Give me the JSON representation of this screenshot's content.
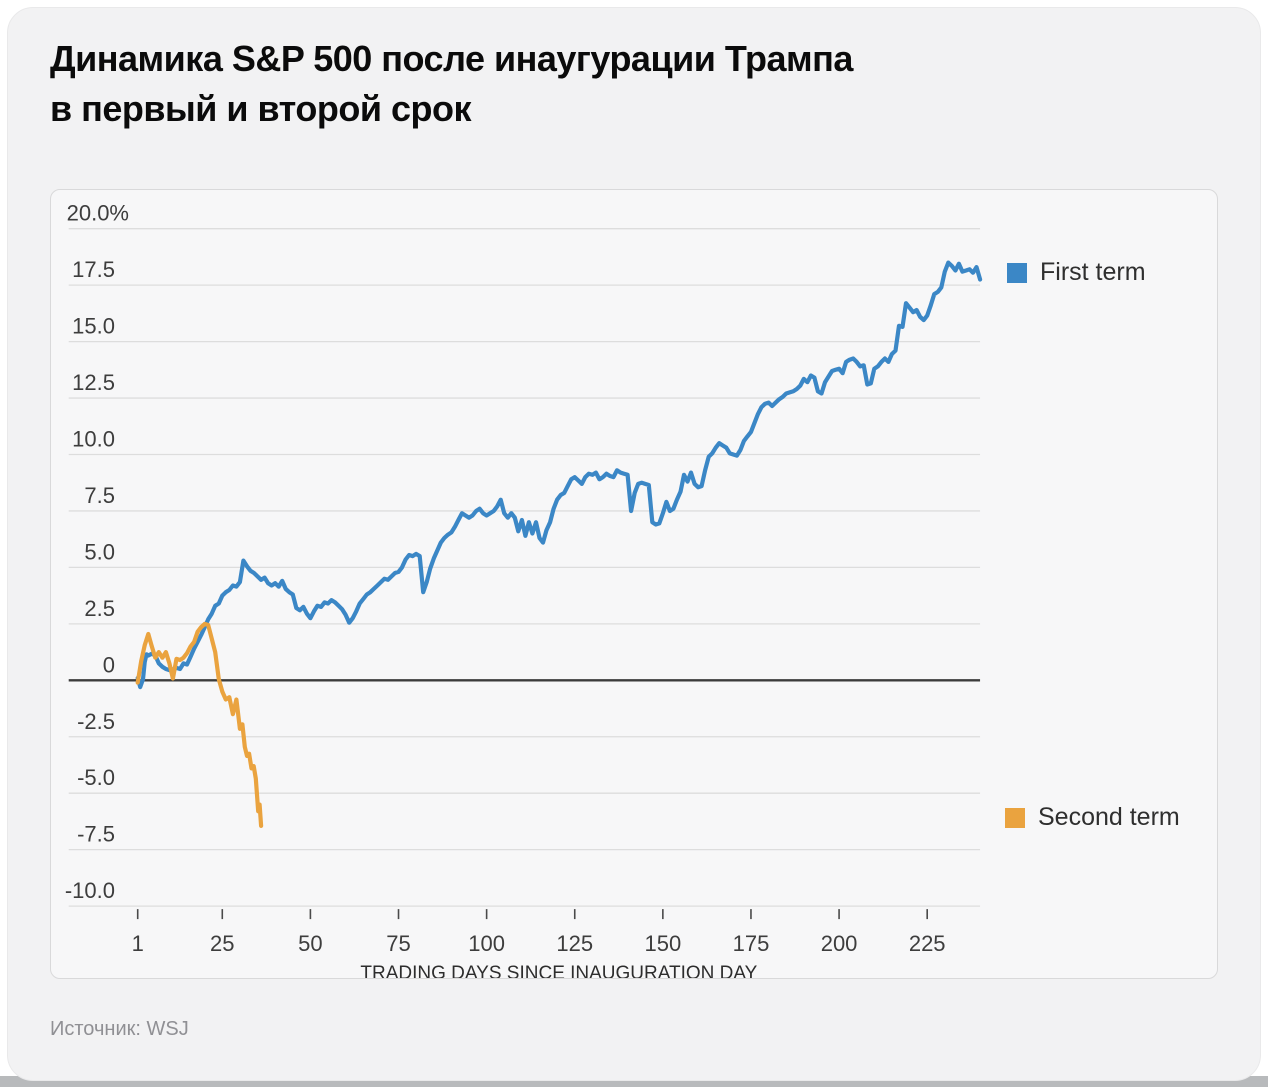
{
  "title": "Динамика S&P 500 после инаугурации Трампа\nв первый и второй срок",
  "source_note": "Источник: WSJ",
  "colors": {
    "first_term": "#3b87c6",
    "second_term": "#eaa33f",
    "grid": "#dddddd",
    "zero_line": "#3c3c3c",
    "tick_text": "#3d3d3d",
    "axis_title_text": "#2d2d2d",
    "card_bg": "#f2f2f3",
    "panel_bg": "#f7f7f8"
  },
  "chart_data": {
    "type": "line",
    "title": "Динамика S&P 500 после инаугурации Трампа в первый и второй срок",
    "xlabel": "TRADING DAYS SINCE INAUGURATION DAY",
    "ylabel": "",
    "grid": true,
    "legend_position": "right",
    "xlim": [
      1,
      240
    ],
    "ylim": [
      -10,
      20
    ],
    "x_ticks": [
      1,
      25,
      50,
      75,
      100,
      125,
      150,
      175,
      200,
      225
    ],
    "y_ticks": [
      {
        "value": 20,
        "label": "20.0%"
      },
      {
        "value": 17.5,
        "label": "17.5"
      },
      {
        "value": 15,
        "label": "15.0"
      },
      {
        "value": 12.5,
        "label": "12.5"
      },
      {
        "value": 10,
        "label": "10.0"
      },
      {
        "value": 7.5,
        "label": "7.5"
      },
      {
        "value": 5,
        "label": "5.0"
      },
      {
        "value": 2.5,
        "label": "2.5"
      },
      {
        "value": 0,
        "label": "0"
      },
      {
        "value": -2.5,
        "label": "-2.5"
      },
      {
        "value": -5,
        "label": "-5.0"
      },
      {
        "value": -7.5,
        "label": "-7.5"
      },
      {
        "value": -10,
        "label": "-10.0"
      }
    ],
    "series": [
      {
        "name": "First term",
        "color": "#3b87c6",
        "points": [
          [
            1,
            0.1
          ],
          [
            1.7,
            -0.3
          ],
          [
            2.5,
            0.05
          ],
          [
            3,
            0.8
          ],
          [
            3.5,
            1.15
          ],
          [
            4,
            1.1
          ],
          [
            5,
            1.18
          ],
          [
            6,
            1.1
          ],
          [
            7,
            0.75
          ],
          [
            8,
            0.6
          ],
          [
            9,
            0.5
          ],
          [
            10,
            0.45
          ],
          [
            11,
            0.48
          ],
          [
            12,
            0.55
          ],
          [
            13,
            0.5
          ],
          [
            14,
            0.75
          ],
          [
            15,
            0.7
          ],
          [
            16,
            1.05
          ],
          [
            17,
            1.4
          ],
          [
            18,
            1.7
          ],
          [
            19,
            2.0
          ],
          [
            20,
            2.35
          ],
          [
            21,
            2.7
          ],
          [
            22,
            2.95
          ],
          [
            23,
            3.3
          ],
          [
            24,
            3.4
          ],
          [
            25,
            3.75
          ],
          [
            26,
            3.9
          ],
          [
            27,
            4.0
          ],
          [
            28,
            4.2
          ],
          [
            29,
            4.15
          ],
          [
            30,
            4.35
          ],
          [
            31,
            5.3
          ],
          [
            32,
            5.05
          ],
          [
            33,
            4.85
          ],
          [
            34,
            4.75
          ],
          [
            35,
            4.6
          ],
          [
            36,
            4.45
          ],
          [
            37,
            4.55
          ],
          [
            38,
            4.3
          ],
          [
            39,
            4.2
          ],
          [
            40,
            4.3
          ],
          [
            41,
            4.15
          ],
          [
            42,
            4.4
          ],
          [
            43,
            4.05
          ],
          [
            44,
            3.9
          ],
          [
            45,
            3.8
          ],
          [
            46,
            3.2
          ],
          [
            47,
            3.1
          ],
          [
            48,
            3.25
          ],
          [
            49,
            2.95
          ],
          [
            50,
            2.75
          ],
          [
            51,
            3.05
          ],
          [
            52,
            3.3
          ],
          [
            53,
            3.25
          ],
          [
            54,
            3.45
          ],
          [
            55,
            3.4
          ],
          [
            56,
            3.55
          ],
          [
            57,
            3.45
          ],
          [
            58,
            3.3
          ],
          [
            59,
            3.15
          ],
          [
            60,
            2.9
          ],
          [
            61,
            2.55
          ],
          [
            62,
            2.75
          ],
          [
            63,
            3.05
          ],
          [
            64,
            3.4
          ],
          [
            65,
            3.6
          ],
          [
            66,
            3.8
          ],
          [
            67,
            3.9
          ],
          [
            68,
            4.05
          ],
          [
            69,
            4.2
          ],
          [
            70,
            4.35
          ],
          [
            71,
            4.5
          ],
          [
            72,
            4.45
          ],
          [
            73,
            4.6
          ],
          [
            74,
            4.75
          ],
          [
            75,
            4.8
          ],
          [
            76,
            5.0
          ],
          [
            77,
            5.35
          ],
          [
            78,
            5.55
          ],
          [
            79,
            5.5
          ],
          [
            80,
            5.6
          ],
          [
            81,
            5.5
          ],
          [
            82,
            3.9
          ],
          [
            83,
            4.35
          ],
          [
            84,
            4.95
          ],
          [
            85,
            5.4
          ],
          [
            86,
            5.75
          ],
          [
            87,
            6.1
          ],
          [
            88,
            6.3
          ],
          [
            89,
            6.45
          ],
          [
            90,
            6.55
          ],
          [
            91,
            6.8
          ],
          [
            92,
            7.1
          ],
          [
            93,
            7.4
          ],
          [
            94,
            7.3
          ],
          [
            95,
            7.2
          ],
          [
            96,
            7.3
          ],
          [
            97,
            7.5
          ],
          [
            98,
            7.6
          ],
          [
            99,
            7.4
          ],
          [
            100,
            7.3
          ],
          [
            101,
            7.4
          ],
          [
            102,
            7.5
          ],
          [
            103,
            7.7
          ],
          [
            104,
            8.0
          ],
          [
            105,
            7.4
          ],
          [
            106,
            7.2
          ],
          [
            107,
            7.4
          ],
          [
            108,
            7.2
          ],
          [
            109,
            6.6
          ],
          [
            110,
            7.1
          ],
          [
            111,
            6.4
          ],
          [
            112,
            7.0
          ],
          [
            113,
            6.5
          ],
          [
            114,
            7.0
          ],
          [
            115,
            6.3
          ],
          [
            116,
            6.1
          ],
          [
            117,
            6.65
          ],
          [
            118,
            7.0
          ],
          [
            119,
            7.6
          ],
          [
            120,
            8.0
          ],
          [
            121,
            8.2
          ],
          [
            122,
            8.3
          ],
          [
            123,
            8.6
          ],
          [
            124,
            8.9
          ],
          [
            125,
            9.0
          ],
          [
            126,
            8.85
          ],
          [
            127,
            8.7
          ],
          [
            128,
            9.0
          ],
          [
            129,
            9.15
          ],
          [
            130,
            9.1
          ],
          [
            131,
            9.2
          ],
          [
            132,
            8.9
          ],
          [
            133,
            9.0
          ],
          [
            134,
            9.15
          ],
          [
            135,
            9.05
          ],
          [
            136,
            9.0
          ],
          [
            137,
            9.3
          ],
          [
            138,
            9.2
          ],
          [
            139,
            9.15
          ],
          [
            140,
            9.1
          ],
          [
            141,
            7.5
          ],
          [
            142,
            8.3
          ],
          [
            143,
            8.7
          ],
          [
            144,
            8.75
          ],
          [
            145,
            8.7
          ],
          [
            146,
            8.65
          ],
          [
            147,
            7.0
          ],
          [
            148,
            6.9
          ],
          [
            149,
            6.95
          ],
          [
            150,
            7.4
          ],
          [
            151,
            7.9
          ],
          [
            152,
            7.5
          ],
          [
            153,
            7.6
          ],
          [
            154,
            8.0
          ],
          [
            155,
            8.35
          ],
          [
            156,
            9.1
          ],
          [
            157,
            8.8
          ],
          [
            158,
            9.2
          ],
          [
            159,
            8.7
          ],
          [
            160,
            8.55
          ],
          [
            161,
            8.6
          ],
          [
            162,
            9.3
          ],
          [
            163,
            9.9
          ],
          [
            164,
            10.05
          ],
          [
            165,
            10.3
          ],
          [
            166,
            10.5
          ],
          [
            167,
            10.4
          ],
          [
            168,
            10.3
          ],
          [
            169,
            10.05
          ],
          [
            170,
            10.0
          ],
          [
            171,
            9.95
          ],
          [
            172,
            10.2
          ],
          [
            173,
            10.6
          ],
          [
            174,
            10.8
          ],
          [
            175,
            11.0
          ],
          [
            176,
            11.4
          ],
          [
            177,
            11.8
          ],
          [
            178,
            12.1
          ],
          [
            179,
            12.25
          ],
          [
            180,
            12.3
          ],
          [
            181,
            12.15
          ],
          [
            182,
            12.3
          ],
          [
            183,
            12.45
          ],
          [
            184,
            12.55
          ],
          [
            185,
            12.7
          ],
          [
            186,
            12.75
          ],
          [
            187,
            12.8
          ],
          [
            188,
            12.9
          ],
          [
            189,
            13.05
          ],
          [
            190,
            13.35
          ],
          [
            191,
            13.2
          ],
          [
            192,
            13.5
          ],
          [
            193,
            13.4
          ],
          [
            194,
            12.8
          ],
          [
            195,
            12.7
          ],
          [
            196,
            13.2
          ],
          [
            197,
            13.45
          ],
          [
            198,
            13.7
          ],
          [
            199,
            13.75
          ],
          [
            200,
            13.8
          ],
          [
            201,
            13.6
          ],
          [
            202,
            14.1
          ],
          [
            203,
            14.2
          ],
          [
            204,
            14.25
          ],
          [
            205,
            14.1
          ],
          [
            206,
            13.9
          ],
          [
            207,
            13.95
          ],
          [
            208,
            13.1
          ],
          [
            209,
            13.15
          ],
          [
            210,
            13.8
          ],
          [
            211,
            13.9
          ],
          [
            212,
            14.1
          ],
          [
            213,
            14.25
          ],
          [
            214,
            14.1
          ],
          [
            215,
            14.45
          ],
          [
            216,
            14.6
          ],
          [
            217,
            15.7
          ],
          [
            218,
            15.65
          ],
          [
            219,
            16.7
          ],
          [
            220,
            16.5
          ],
          [
            221,
            16.3
          ],
          [
            222,
            16.4
          ],
          [
            223,
            16.1
          ],
          [
            224,
            15.95
          ],
          [
            225,
            16.15
          ],
          [
            226,
            16.6
          ],
          [
            227,
            17.1
          ],
          [
            228,
            17.2
          ],
          [
            229,
            17.4
          ],
          [
            230,
            18.1
          ],
          [
            231,
            18.5
          ],
          [
            232,
            18.35
          ],
          [
            233,
            18.15
          ],
          [
            234,
            18.45
          ],
          [
            235,
            18.1
          ],
          [
            236,
            18.15
          ],
          [
            237,
            18.2
          ],
          [
            238,
            18.05
          ],
          [
            239,
            18.3
          ],
          [
            240,
            17.75
          ]
        ]
      },
      {
        "name": "Second term",
        "color": "#eaa33f",
        "points": [
          [
            1,
            -0.1
          ],
          [
            2,
            0.85
          ],
          [
            3,
            1.55
          ],
          [
            4,
            2.05
          ],
          [
            5,
            1.5
          ],
          [
            6,
            1.0
          ],
          [
            7,
            1.25
          ],
          [
            8,
            1.0
          ],
          [
            9,
            1.25
          ],
          [
            10,
            0.75
          ],
          [
            11,
            0.08
          ],
          [
            12,
            0.95
          ],
          [
            13,
            0.9
          ],
          [
            14,
            1.0
          ],
          [
            15,
            1.2
          ],
          [
            16,
            1.5
          ],
          [
            17,
            1.7
          ],
          [
            18,
            2.15
          ],
          [
            19,
            2.35
          ],
          [
            20,
            2.5
          ],
          [
            21,
            2.45
          ],
          [
            22,
            1.85
          ],
          [
            23,
            1.25
          ],
          [
            24,
            0.05
          ],
          [
            25,
            -0.5
          ],
          [
            26,
            -0.85
          ],
          [
            27,
            -0.75
          ],
          [
            28,
            -1.5
          ],
          [
            29,
            -0.85
          ],
          [
            30,
            -2.15
          ],
          [
            30.7,
            -1.95
          ],
          [
            31.4,
            -2.95
          ],
          [
            32,
            -3.35
          ],
          [
            32.6,
            -3.25
          ],
          [
            33.3,
            -3.9
          ],
          [
            33.9,
            -3.8
          ],
          [
            34.5,
            -4.35
          ],
          [
            35.2,
            -5.8
          ],
          [
            35.6,
            -5.5
          ],
          [
            36,
            -6.45
          ]
        ]
      }
    ]
  }
}
